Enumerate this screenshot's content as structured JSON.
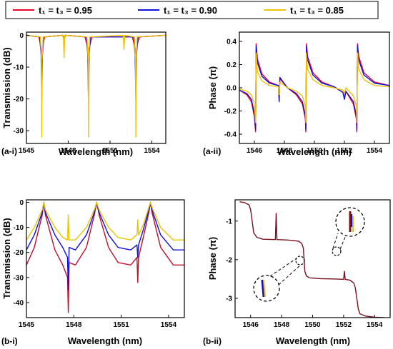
{
  "legend": {
    "entries": [
      {
        "label": "t₁ = t₃ = 0.95",
        "color": "#e8002a"
      },
      {
        "label": "t₁ = t₃ = 0.90",
        "color": "#1010d8"
      },
      {
        "label": "t₁ = t₃ = 0.85",
        "color": "#f2c200"
      }
    ]
  },
  "chart_data": [
    {
      "panel_label": "(a-i)",
      "type": "line",
      "xlabel": "Wavelength (nm)",
      "ylabel": "Transmission (dB)",
      "xlim": [
        1545,
        1555
      ],
      "ylim": [
        -34,
        1
      ],
      "xticks": [
        1545,
        1548,
        1551,
        1554
      ],
      "yticks": [
        0,
        -10,
        -20,
        -30
      ],
      "series": [
        {
          "name": "t₁ = t₃ = 0.95",
          "color": "#e8002a",
          "x": [
            1545,
            1545.9,
            1546.05,
            1546.1,
            1546.15,
            1546.3,
            1547.6,
            1547.7,
            1547.8,
            1549.2,
            1549.4,
            1549.45,
            1549.5,
            1549.7,
            1552.6,
            1552.8,
            1552.85,
            1552.9,
            1553.1,
            1555
          ],
          "y": [
            0,
            -0.5,
            -4,
            -14,
            -4,
            -0.5,
            0,
            -0.5,
            0,
            -0.5,
            -4,
            -14,
            -4,
            -0.5,
            -0.5,
            -4,
            -14,
            -4,
            -0.5,
            0
          ]
        },
        {
          "name": "t₁ = t₃ = 0.90",
          "color": "#1010d8",
          "x": [
            1545,
            1545.95,
            1546.05,
            1546.1,
            1546.15,
            1546.25,
            1547.6,
            1547.7,
            1547.8,
            1549.3,
            1549.4,
            1549.45,
            1549.5,
            1549.6,
            1552.7,
            1552.8,
            1552.85,
            1552.9,
            1553.0,
            1555
          ],
          "y": [
            0,
            -0.5,
            -6,
            -20,
            -6,
            -0.5,
            0,
            -1,
            0,
            -0.5,
            -6,
            -20,
            -6,
            -0.5,
            -0.5,
            -6,
            -20,
            -6,
            -0.5,
            0
          ]
        },
        {
          "name": "t₁ = t₃ = 0.85",
          "color": "#f2c200",
          "x": [
            1545,
            1546.0,
            1546.08,
            1546.1,
            1546.12,
            1546.2,
            1547.65,
            1547.7,
            1547.75,
            1549.35,
            1549.43,
            1549.45,
            1549.47,
            1549.55,
            1551.95,
            1552.0,
            1552.05,
            1552.75,
            1552.83,
            1552.85,
            1552.87,
            1552.95,
            1555
          ],
          "y": [
            0,
            -0.5,
            -8,
            -32,
            -8,
            -0.5,
            0,
            -7,
            0,
            -0.5,
            -8,
            -32,
            -8,
            -0.5,
            0,
            -4.5,
            0,
            -0.5,
            -8,
            -32,
            -8,
            -0.5,
            0
          ]
        }
      ]
    },
    {
      "panel_label": "(a-ii)",
      "type": "line",
      "xlabel": "Wavelength (nm)",
      "ylabel": "Phase (π)",
      "xlim": [
        1545,
        1555
      ],
      "ylim": [
        -0.48,
        0.48
      ],
      "xticks": [
        1546,
        1548,
        1550,
        1552,
        1554
      ],
      "yticks": [
        0.4,
        0.2,
        0.0,
        -0.2,
        -0.4
      ],
      "series": [
        {
          "name": "t₁ = t₃ = 0.95",
          "color": "#e8002a",
          "x": [
            1545,
            1545.5,
            1545.8,
            1546.0,
            1546.08,
            1546.1,
            1546.12,
            1546.2,
            1546.5,
            1547.0,
            1547.6,
            1547.65,
            1547.7,
            1548.2,
            1548.8,
            1549.2,
            1549.4,
            1549.43,
            1549.45,
            1549.47,
            1549.55,
            1549.9,
            1550.5,
            1551.3,
            1551.9,
            1552.0,
            1552.1,
            1552.6,
            1552.8,
            1552.83,
            1552.85,
            1552.87,
            1552.95,
            1553.3,
            1554.0,
            1555
          ],
          "y": [
            -0.02,
            -0.06,
            -0.12,
            -0.25,
            -0.38,
            0,
            0.38,
            0.25,
            0.12,
            0.05,
            0.02,
            -0.1,
            0.08,
            0,
            -0.06,
            -0.14,
            -0.27,
            -0.38,
            0,
            0.38,
            0.27,
            0.13,
            0.05,
            0.01,
            -0.04,
            -0.09,
            -0.03,
            -0.14,
            -0.27,
            -0.38,
            0,
            0.38,
            0.27,
            0.13,
            0.05,
            0.02
          ]
        },
        {
          "name": "t₁ = t₃ = 0.90",
          "color": "#1010d8",
          "x": [
            1545,
            1545.5,
            1545.8,
            1546.0,
            1546.08,
            1546.1,
            1546.12,
            1546.2,
            1546.5,
            1547.0,
            1547.6,
            1547.65,
            1547.7,
            1548.2,
            1548.8,
            1549.2,
            1549.4,
            1549.43,
            1549.45,
            1549.47,
            1549.55,
            1549.9,
            1550.5,
            1551.3,
            1551.9,
            1552.0,
            1552.1,
            1552.6,
            1552.8,
            1552.83,
            1552.85,
            1552.87,
            1552.95,
            1553.3,
            1554.0,
            1555
          ],
          "y": [
            -0.02,
            -0.05,
            -0.1,
            -0.22,
            -0.36,
            0,
            0.36,
            0.22,
            0.1,
            0.04,
            0.02,
            -0.12,
            0.09,
            0,
            -0.05,
            -0.12,
            -0.24,
            -0.36,
            0,
            0.36,
            0.24,
            0.11,
            0.04,
            0.01,
            -0.04,
            -0.1,
            -0.03,
            -0.12,
            -0.24,
            -0.36,
            0,
            0.36,
            0.24,
            0.11,
            0.04,
            0.02
          ]
        },
        {
          "name": "t₁ = t₃ = 0.85",
          "color": "#f2c200",
          "x": [
            1545,
            1545.5,
            1545.8,
            1546.0,
            1546.08,
            1546.1,
            1546.12,
            1546.2,
            1546.5,
            1547.0,
            1547.6,
            1547.65,
            1547.7,
            1548.2,
            1548.8,
            1549.2,
            1549.4,
            1549.43,
            1549.45,
            1549.47,
            1549.55,
            1549.9,
            1550.5,
            1551.3,
            1551.9,
            1552.0,
            1552.1,
            1552.6,
            1552.8,
            1552.83,
            1552.85,
            1552.87,
            1552.95,
            1553.3,
            1554.0,
            1555
          ],
          "y": [
            -0.01,
            -0.03,
            -0.06,
            -0.14,
            -0.3,
            0,
            0.3,
            0.14,
            0.06,
            0.02,
            0.01,
            -0.06,
            0.05,
            0,
            -0.03,
            -0.07,
            -0.16,
            -0.3,
            0,
            0.3,
            0.16,
            0.07,
            0.02,
            0.0,
            -0.02,
            -0.05,
            0.0,
            -0.07,
            -0.16,
            -0.3,
            0,
            0.3,
            0.16,
            0.07,
            0.02,
            0.01
          ]
        }
      ]
    },
    {
      "panel_label": "(b-i)",
      "type": "line",
      "xlabel": "Wavelength (nm)",
      "ylabel": "Transmission (dB)",
      "xlim": [
        1545,
        1555
      ],
      "ylim": [
        -46,
        1
      ],
      "xticks": [
        1545,
        1548,
        1551,
        1554
      ],
      "yticks": [
        0,
        -10,
        -20,
        -30,
        -40
      ],
      "series": [
        {
          "name": "t₁ = t₃ = 0.95",
          "color": "#c0102a",
          "x": [
            1545,
            1545.5,
            1546.0,
            1546.1,
            1546.2,
            1546.8,
            1547.3,
            1547.6,
            1547.65,
            1547.7,
            1548.1,
            1548.8,
            1549.3,
            1549.45,
            1549.6,
            1550.2,
            1550.8,
            1551.6,
            1552.0,
            1552.05,
            1552.1,
            1552.4,
            1552.75,
            1552.85,
            1552.95,
            1553.5,
            1554.3,
            1555
          ],
          "y": [
            -25,
            -18,
            -5,
            0,
            -5,
            -19,
            -25,
            -30,
            -44,
            -24,
            -25,
            -18,
            -5,
            0,
            -5,
            -18,
            -24,
            -25,
            -22,
            -32,
            -22,
            -14,
            -4,
            0,
            -4,
            -18,
            -25,
            -25
          ]
        },
        {
          "name": "t₁ = t₃ = 0.90",
          "color": "#1010d8",
          "x": [
            1545,
            1545.5,
            1546.0,
            1546.1,
            1546.2,
            1546.8,
            1547.3,
            1547.6,
            1547.65,
            1547.7,
            1548.1,
            1548.8,
            1549.3,
            1549.45,
            1549.6,
            1550.2,
            1550.8,
            1551.6,
            1552.0,
            1552.05,
            1552.1,
            1552.4,
            1552.75,
            1552.85,
            1552.95,
            1553.5,
            1554.3,
            1555
          ],
          "y": [
            -19,
            -13,
            -4,
            0,
            -4,
            -13,
            -18,
            -22,
            -35,
            -18,
            -19,
            -13,
            -4,
            0,
            -4,
            -13,
            -18,
            -19,
            -17,
            -22,
            -17,
            -11,
            -3,
            0,
            -3,
            -13,
            -19,
            -19
          ]
        },
        {
          "name": "t₁ = t₃ = 0.85",
          "color": "#e6c400",
          "x": [
            1545,
            1545.5,
            1546.0,
            1546.1,
            1546.2,
            1546.8,
            1547.3,
            1547.6,
            1547.65,
            1547.7,
            1548.1,
            1548.8,
            1549.3,
            1549.45,
            1549.6,
            1550.2,
            1550.8,
            1551.6,
            1552.0,
            1552.05,
            1552.1,
            1552.4,
            1552.75,
            1552.85,
            1552.95,
            1553.5,
            1554.3,
            1555
          ],
          "y": [
            -15,
            -10,
            -3,
            0,
            -3,
            -10,
            -14,
            -15,
            -5,
            -15,
            -15,
            -10,
            -3,
            0,
            -3,
            -10,
            -14,
            -15,
            -13,
            -7,
            -13,
            -9,
            -2,
            0,
            -2,
            -10,
            -15,
            -15
          ]
        }
      ]
    },
    {
      "panel_label": "(b-ii)",
      "type": "line",
      "xlabel": "Wavelength (nm)",
      "ylabel": "Phase (π)",
      "xlim": [
        1545,
        1555
      ],
      "ylim": [
        -3.5,
        -0.45
      ],
      "xticks": [
        1546,
        1548,
        1550,
        1552,
        1554
      ],
      "yticks": [
        -1,
        -2,
        -3
      ],
      "series": [
        {
          "name": "t₁ = t₃ = 0.95",
          "color": "#7a1020",
          "x": [
            1545.3,
            1545.6,
            1545.9,
            1546.0,
            1546.1,
            1546.2,
            1546.4,
            1546.8,
            1547.6,
            1547.65,
            1547.7,
            1548.4,
            1549.1,
            1549.3,
            1549.4,
            1549.45,
            1549.5,
            1549.6,
            1549.8,
            1550.5,
            1551.5,
            1552.0,
            1552.05,
            1552.1,
            1552.4,
            1552.65,
            1552.75,
            1552.85,
            1552.95,
            1553.05,
            1553.4,
            1554.0,
            1554.6
          ],
          "y": [
            -0.5,
            -0.52,
            -0.58,
            -0.7,
            -1.0,
            -1.3,
            -1.42,
            -1.47,
            -1.48,
            -0.8,
            -1.48,
            -1.49,
            -1.52,
            -1.58,
            -1.7,
            -2.0,
            -2.3,
            -2.42,
            -2.47,
            -2.49,
            -2.5,
            -2.51,
            -2.3,
            -2.51,
            -2.53,
            -2.6,
            -2.72,
            -3.0,
            -3.28,
            -3.4,
            -3.46,
            -3.49,
            -3.5
          ]
        }
      ]
    }
  ],
  "colors": {
    "red": "#e8002a",
    "blue": "#1010d8",
    "yellow": "#f2c200",
    "darkred": "#7a1020"
  }
}
